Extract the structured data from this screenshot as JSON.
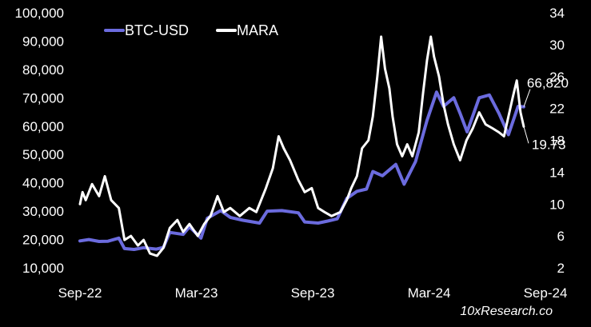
{
  "chart_data": {
    "type": "line",
    "title": "",
    "legend_position": "top-left",
    "grid": false,
    "x_ticks": [
      "Sep-22",
      "Mar-23",
      "Sep-23",
      "Mar-24",
      "Sep-24"
    ],
    "x_range": [
      "2022-09-01",
      "2024-09-01"
    ],
    "y_left": {
      "ticks": [
        "10,000",
        "20,000",
        "30,000",
        "40,000",
        "50,000",
        "60,000",
        "70,000",
        "80,000",
        "90,000",
        "100,000"
      ],
      "range": [
        10000,
        100000
      ]
    },
    "y_right": {
      "ticks": [
        "2",
        "6",
        "10",
        "14",
        "18",
        "22",
        "26",
        "30",
        "34"
      ],
      "range": [
        2,
        34
      ]
    },
    "series": [
      {
        "name": "BTC-USD",
        "axis": "left",
        "color": "#6B6BDE",
        "points": [
          [
            "2022-09-01",
            19500
          ],
          [
            "2022-09-15",
            20000
          ],
          [
            "2022-10-01",
            19300
          ],
          [
            "2022-10-15",
            19400
          ],
          [
            "2022-11-01",
            20500
          ],
          [
            "2022-11-10",
            16800
          ],
          [
            "2022-11-25",
            16500
          ],
          [
            "2022-12-10",
            17100
          ],
          [
            "2022-12-30",
            16600
          ],
          [
            "2023-01-10",
            17200
          ],
          [
            "2023-01-20",
            22500
          ],
          [
            "2023-02-10",
            21800
          ],
          [
            "2023-02-20",
            24500
          ],
          [
            "2023-03-10",
            20500
          ],
          [
            "2023-03-20",
            27500
          ],
          [
            "2023-04-10",
            30200
          ],
          [
            "2023-04-25",
            27800
          ],
          [
            "2023-05-15",
            26800
          ],
          [
            "2023-06-10",
            25800
          ],
          [
            "2023-06-22",
            30000
          ],
          [
            "2023-07-15",
            30200
          ],
          [
            "2023-08-10",
            29400
          ],
          [
            "2023-08-20",
            26200
          ],
          [
            "2023-09-10",
            25800
          ],
          [
            "2023-09-25",
            26500
          ],
          [
            "2023-10-10",
            27300
          ],
          [
            "2023-10-25",
            34500
          ],
          [
            "2023-11-10",
            37000
          ],
          [
            "2023-11-25",
            37800
          ],
          [
            "2023-12-05",
            44000
          ],
          [
            "2023-12-20",
            42500
          ],
          [
            "2024-01-10",
            46500
          ],
          [
            "2024-01-23",
            39500
          ],
          [
            "2024-02-10",
            47500
          ],
          [
            "2024-02-28",
            62000
          ],
          [
            "2024-03-14",
            72000
          ],
          [
            "2024-03-25",
            67000
          ],
          [
            "2024-04-10",
            70000
          ],
          [
            "2024-04-20",
            64500
          ],
          [
            "2024-05-01",
            58000
          ],
          [
            "2024-05-20",
            70000
          ],
          [
            "2024-06-05",
            71000
          ],
          [
            "2024-06-20",
            64500
          ],
          [
            "2024-07-05",
            57000
          ],
          [
            "2024-07-20",
            67000
          ],
          [
            "2024-07-29",
            66820
          ]
        ]
      },
      {
        "name": "MARA",
        "axis": "right",
        "color": "#FFFFFF",
        "points": [
          [
            "2022-09-01",
            10.0
          ],
          [
            "2022-09-05",
            11.5
          ],
          [
            "2022-09-10",
            10.5
          ],
          [
            "2022-09-20",
            12.5
          ],
          [
            "2022-10-01",
            11.0
          ],
          [
            "2022-10-10",
            13.5
          ],
          [
            "2022-10-20",
            10.5
          ],
          [
            "2022-11-01",
            9.5
          ],
          [
            "2022-11-10",
            5.5
          ],
          [
            "2022-11-20",
            6.0
          ],
          [
            "2022-12-01",
            4.8
          ],
          [
            "2022-12-10",
            5.5
          ],
          [
            "2022-12-20",
            3.8
          ],
          [
            "2022-12-31",
            3.5
          ],
          [
            "2023-01-10",
            4.5
          ],
          [
            "2023-01-20",
            7.0
          ],
          [
            "2023-02-01",
            8.0
          ],
          [
            "2023-02-10",
            6.5
          ],
          [
            "2023-02-20",
            7.5
          ],
          [
            "2023-03-05",
            6.0
          ],
          [
            "2023-03-15",
            7.5
          ],
          [
            "2023-03-25",
            8.5
          ],
          [
            "2023-04-05",
            11.0
          ],
          [
            "2023-04-15",
            9.0
          ],
          [
            "2023-04-25",
            9.5
          ],
          [
            "2023-05-10",
            8.5
          ],
          [
            "2023-05-25",
            9.5
          ],
          [
            "2023-06-05",
            9.0
          ],
          [
            "2023-06-20",
            12.0
          ],
          [
            "2023-07-01",
            14.5
          ],
          [
            "2023-07-10",
            18.5
          ],
          [
            "2023-07-18",
            17.0
          ],
          [
            "2023-07-28",
            15.5
          ],
          [
            "2023-08-10",
            13.0
          ],
          [
            "2023-08-20",
            11.5
          ],
          [
            "2023-08-31",
            12.0
          ],
          [
            "2023-09-10",
            9.5
          ],
          [
            "2023-09-20",
            9.0
          ],
          [
            "2023-10-01",
            8.5
          ],
          [
            "2023-10-15",
            9.0
          ],
          [
            "2023-10-25",
            10.5
          ],
          [
            "2023-11-01",
            12.0
          ],
          [
            "2023-11-10",
            13.5
          ],
          [
            "2023-11-18",
            17.0
          ],
          [
            "2023-11-28",
            18.0
          ],
          [
            "2023-12-05",
            21.0
          ],
          [
            "2023-12-12",
            26.0
          ],
          [
            "2023-12-18",
            31.0
          ],
          [
            "2023-12-24",
            27.0
          ],
          [
            "2023-12-31",
            24.5
          ],
          [
            "2024-01-05",
            21.0
          ],
          [
            "2024-01-12",
            17.5
          ],
          [
            "2024-01-20",
            16.0
          ],
          [
            "2024-01-28",
            17.5
          ],
          [
            "2024-02-05",
            16.0
          ],
          [
            "2024-02-15",
            19.0
          ],
          [
            "2024-02-22",
            24.0
          ],
          [
            "2024-02-28",
            28.0
          ],
          [
            "2024-03-05",
            31.0
          ],
          [
            "2024-03-10",
            28.5
          ],
          [
            "2024-03-18",
            26.0
          ],
          [
            "2024-03-25",
            22.5
          ],
          [
            "2024-04-01",
            20.0
          ],
          [
            "2024-04-10",
            17.5
          ],
          [
            "2024-04-20",
            15.5
          ],
          [
            "2024-04-30",
            18.0
          ],
          [
            "2024-05-10",
            19.5
          ],
          [
            "2024-05-20",
            21.5
          ],
          [
            "2024-05-30",
            20.0
          ],
          [
            "2024-06-10",
            19.5
          ],
          [
            "2024-06-20",
            19.0
          ],
          [
            "2024-06-28",
            18.5
          ],
          [
            "2024-07-05",
            21.0
          ],
          [
            "2024-07-12",
            23.5
          ],
          [
            "2024-07-18",
            25.5
          ],
          [
            "2024-07-24",
            21.5
          ],
          [
            "2024-07-29",
            19.73
          ]
        ]
      }
    ],
    "annotations": [
      {
        "series": "BTC-USD",
        "label": "66,820"
      },
      {
        "series": "MARA",
        "label": "19.73"
      }
    ]
  },
  "credit": "10xResearch.co"
}
